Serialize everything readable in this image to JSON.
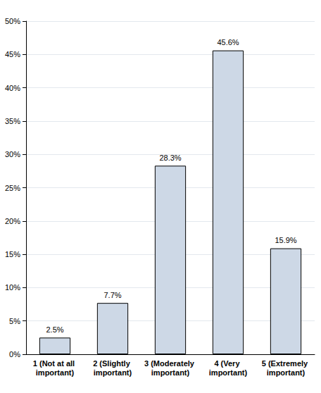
{
  "chart_data": {
    "type": "bar",
    "categories": [
      "1 (Not at all important)",
      "2 (Slightly important)",
      "3 (Moderately important)",
      "4 (Very important)",
      "5 (Extremely important)"
    ],
    "values": [
      2.5,
      7.7,
      28.3,
      45.6,
      15.9
    ],
    "value_labels": [
      "2.5%",
      "7.7%",
      "28.3%",
      "45.6%",
      "15.9%"
    ],
    "color": "#cdd8e6",
    "ylim": [
      0,
      50
    ],
    "yticks": [
      {
        "value": 0,
        "label": "0%"
      },
      {
        "value": 5,
        "label": "5%"
      },
      {
        "value": 10,
        "label": "10%"
      },
      {
        "value": 15,
        "label": "15%"
      },
      {
        "value": 20,
        "label": "20%"
      },
      {
        "value": 25,
        "label": "25%"
      },
      {
        "value": 30,
        "label": "30%"
      },
      {
        "value": 35,
        "label": "35%"
      },
      {
        "value": 40,
        "label": "40%"
      },
      {
        "value": 45,
        "label": "45%"
      },
      {
        "value": 50,
        "label": "50%"
      }
    ],
    "grid": true,
    "data_labels": true
  }
}
